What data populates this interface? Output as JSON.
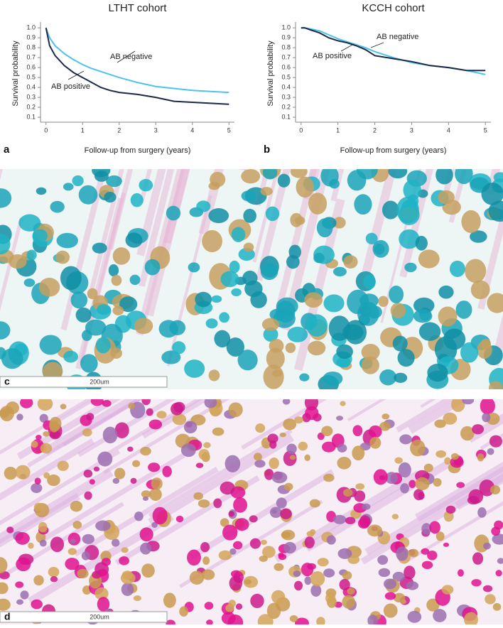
{
  "chart_data": [
    {
      "type": "line",
      "panel_label": "a",
      "title": "LTHT cohort",
      "x_label": "Follow-up from surgery (years)",
      "y_label": "Survival probability",
      "xlim": [
        -0.15,
        5.15
      ],
      "xticks": [
        0,
        1,
        2,
        3,
        4,
        5
      ],
      "ylim": [
        0.05,
        1.03
      ],
      "yticks": [
        0.1,
        0.2,
        0.3,
        0.4,
        0.5,
        0.6,
        0.7,
        0.8,
        0.9,
        {
          "value": 1,
          "label": "1.0"
        }
      ],
      "series": [
        {
          "name": "AB negative",
          "color": "#4cc3ea",
          "x": [
            0,
            0.1,
            0.25,
            0.5,
            0.75,
            1,
            1.25,
            1.5,
            1.75,
            2,
            2.5,
            3,
            3.5,
            4,
            4.5,
            5
          ],
          "values": [
            1.0,
            0.9,
            0.82,
            0.74,
            0.68,
            0.63,
            0.59,
            0.56,
            0.53,
            0.5,
            0.45,
            0.41,
            0.39,
            0.37,
            0.36,
            0.35
          ]
        },
        {
          "name": "AB positive",
          "color": "#1b2a48",
          "x": [
            0,
            0.1,
            0.25,
            0.5,
            0.75,
            1,
            1.25,
            1.5,
            1.75,
            2,
            2.5,
            3,
            3.5,
            4,
            4.5,
            5
          ],
          "values": [
            1.0,
            0.82,
            0.72,
            0.62,
            0.55,
            0.5,
            0.45,
            0.4,
            0.37,
            0.35,
            0.33,
            0.3,
            0.26,
            0.25,
            0.24,
            0.23
          ]
        }
      ]
    },
    {
      "type": "line",
      "panel_label": "b",
      "title": "KCCH cohort",
      "x_label": "Follow-up from surgery (years)",
      "y_label": "Survival probability",
      "xlim": [
        -0.15,
        5.15
      ],
      "xticks": [
        0,
        1,
        2,
        3,
        4,
        5
      ],
      "ylim": [
        0.05,
        1.03
      ],
      "yticks": [
        0.1,
        0.2,
        0.3,
        0.4,
        0.5,
        0.6,
        0.7,
        0.8,
        0.9,
        {
          "value": 1,
          "label": "1.0"
        }
      ],
      "series": [
        {
          "name": "AB negative",
          "color": "#4cc3ea",
          "x": [
            0,
            0.1,
            0.25,
            0.5,
            0.75,
            1,
            1.25,
            1.5,
            1.75,
            2,
            2.5,
            3,
            3.5,
            4,
            4.5,
            5
          ],
          "values": [
            1.0,
            1.0,
            0.99,
            0.97,
            0.93,
            0.89,
            0.86,
            0.83,
            0.8,
            0.76,
            0.7,
            0.65,
            0.62,
            0.6,
            0.57,
            0.53
          ]
        },
        {
          "name": "AB positive",
          "color": "#1b2a48",
          "x": [
            0,
            0.1,
            0.25,
            0.5,
            0.75,
            1,
            1.25,
            1.5,
            1.75,
            2,
            2.5,
            3,
            3.5,
            4,
            4.5,
            5
          ],
          "values": [
            1.0,
            1.0,
            0.98,
            0.95,
            0.9,
            0.87,
            0.85,
            0.82,
            0.78,
            0.72,
            0.69,
            0.66,
            0.62,
            0.6,
            0.57,
            0.57
          ]
        }
      ]
    }
  ],
  "images": [
    {
      "panel_label": "c",
      "scale_bar": "200um"
    },
    {
      "panel_label": "d",
      "scale_bar": "200um"
    }
  ]
}
